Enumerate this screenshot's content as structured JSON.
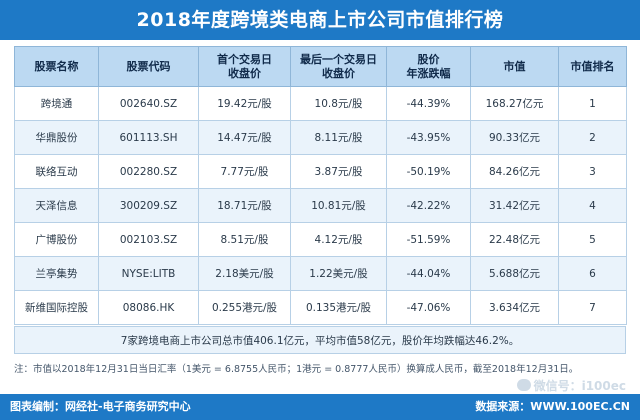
{
  "title": "2018年度跨境类电商上市公司市值排行榜",
  "table": {
    "headers": [
      {
        "line1": "股票名称",
        "line2": ""
      },
      {
        "line1": "股票代码",
        "line2": ""
      },
      {
        "line1": "首个交易日",
        "line2": "收盘价"
      },
      {
        "line1": "最后一个交易日",
        "line2": "收盘价"
      },
      {
        "line1": "股价",
        "line2": "年涨跌幅"
      },
      {
        "line1": "市值",
        "line2": ""
      },
      {
        "line1": "市值排名",
        "line2": ""
      }
    ],
    "rows": [
      {
        "name": "跨境通",
        "code": "002640.SZ",
        "first_close": "19.42元/股",
        "last_close": "10.8元/股",
        "change": "-44.39%",
        "market_cap": "168.27亿元",
        "rank": "1"
      },
      {
        "name": "华鼎股份",
        "code": "601113.SH",
        "first_close": "14.47元/股",
        "last_close": "8.11元/股",
        "change": "-43.95%",
        "market_cap": "90.33亿元",
        "rank": "2"
      },
      {
        "name": "联络互动",
        "code": "002280.SZ",
        "first_close": "7.77元/股",
        "last_close": "3.87元/股",
        "change": "-50.19%",
        "market_cap": "84.26亿元",
        "rank": "3"
      },
      {
        "name": "天泽信息",
        "code": "300209.SZ",
        "first_close": "18.71元/股",
        "last_close": "10.81元/股",
        "change": "-42.22%",
        "market_cap": "31.42亿元",
        "rank": "4"
      },
      {
        "name": "广博股份",
        "code": "002103.SZ",
        "first_close": "8.51元/股",
        "last_close": "4.12元/股",
        "change": "-51.59%",
        "market_cap": "22.48亿元",
        "rank": "5"
      },
      {
        "name": "兰亭集势",
        "code": "NYSE:LITB",
        "first_close": "2.18美元/股",
        "last_close": "1.22美元/股",
        "change": "-44.04%",
        "market_cap": "5.688亿元",
        "rank": "6"
      },
      {
        "name": "新维国际控股",
        "code": "08086.HK",
        "first_close": "0.255港元/股",
        "last_close": "0.135港元/股",
        "change": "-47.06%",
        "market_cap": "3.634亿元",
        "rank": "7"
      }
    ]
  },
  "summary": "7家跨境电商上市公司总市值406.1亿元，平均市值58亿元，股价年均跌幅达46.2%。",
  "note": "注：市值以2018年12月31日当日汇率（1美元 = 6.8755人民币；1港元 = 0.8777人民币）换算成人民币，截至2018年12月31日。",
  "wechat": "微信号：i100ec",
  "footer": {
    "left": "图表编制：网经社-电子商务研究中心",
    "right": "数据来源：WWW.100EC.CN"
  },
  "colors": {
    "title_bg": "#1e79c6",
    "header_bg": "#bcd9f2",
    "row_alt": "#eaf3fb"
  },
  "icons": [
    "wechat-icon"
  ]
}
